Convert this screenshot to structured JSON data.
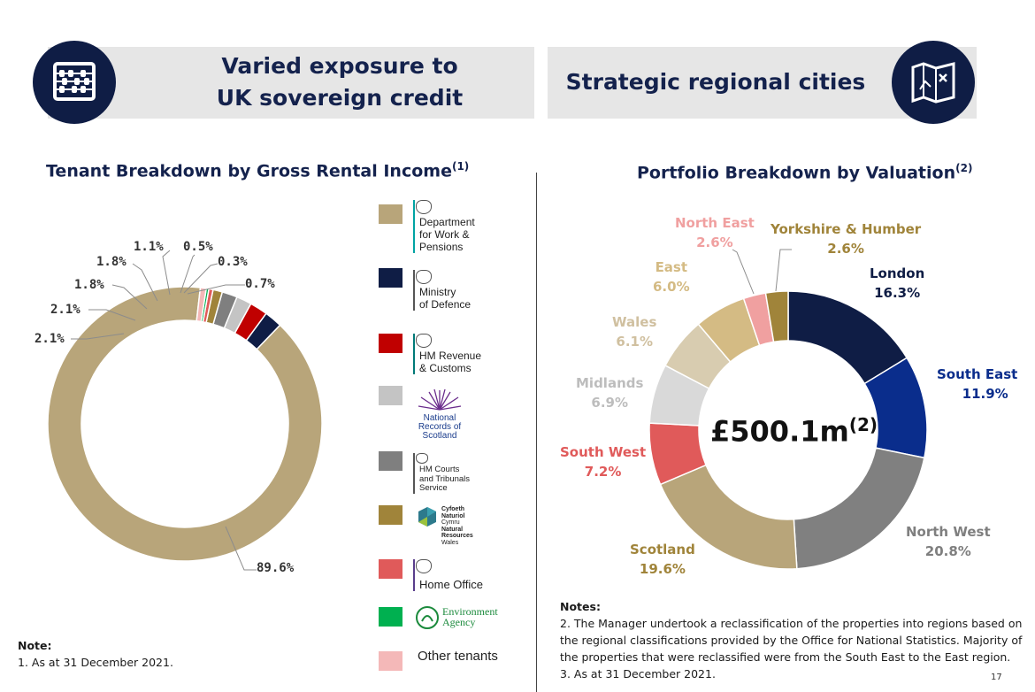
{
  "banners": {
    "left_title_line1": "Varied exposure to",
    "left_title_line2": "UK sovereign credit",
    "right_title": "Strategic regional cities",
    "left_icon": "abacus-icon",
    "right_icon": "map-icon"
  },
  "left_section": {
    "title": "Tenant Breakdown by Gross Rental Income",
    "title_note": "(1)"
  },
  "right_section": {
    "title": "Portfolio Breakdown by Valuation",
    "title_note": "(2)",
    "center_value": "£500.1m",
    "center_note": "(2)"
  },
  "chart_data": [
    {
      "type": "pie",
      "subtype": "donut",
      "title": "Tenant Breakdown by Gross Rental Income(1)",
      "slices": [
        {
          "label": "Department for Work & Pensions",
          "value": 89.6,
          "display": "89.6%",
          "color": "#b8a57a"
        },
        {
          "label": "Ministry of Defence",
          "value": 2.1,
          "display": "2.1%",
          "color": "#0f1d45"
        },
        {
          "label": "HM Revenue & Customs",
          "value": 2.1,
          "display": "2.1%",
          "color": "#c00000"
        },
        {
          "label": "National Records of Scotland",
          "value": 1.8,
          "display": "1.8%",
          "color": "#c4c4c4"
        },
        {
          "label": "HM Courts and Tribunals Service",
          "value": 1.8,
          "display": "1.8%",
          "color": "#7f7f7f"
        },
        {
          "label": "Cyfoeth Naturiol Cymru Natural Resources Wales",
          "value": 1.1,
          "display": "1.1%",
          "color": "#a0843a"
        },
        {
          "label": "Home Office",
          "value": 0.5,
          "display": "0.5%",
          "color": "#e05a5a"
        },
        {
          "label": "Environment Agency",
          "value": 0.3,
          "display": "0.3%",
          "color": "#00b050"
        },
        {
          "label": "Other tenants",
          "value": 0.7,
          "display": "0.7%",
          "color": "#f4b8b8"
        }
      ]
    },
    {
      "type": "pie",
      "subtype": "donut",
      "title": "Portfolio Breakdown by Valuation(2)",
      "slices": [
        {
          "label": "London",
          "value": 16.3,
          "display": "16.3%",
          "color": "#0f1d45"
        },
        {
          "label": "South East",
          "value": 11.9,
          "display": "11.9%",
          "color": "#0a2d8c"
        },
        {
          "label": "North West",
          "value": 20.8,
          "display": "20.8%",
          "color": "#808080"
        },
        {
          "label": "Scotland",
          "value": 19.6,
          "display": "19.6%",
          "color": "#b8a57a"
        },
        {
          "label": "South West",
          "value": 7.2,
          "display": "7.2%",
          "color": "#e05a5a"
        },
        {
          "label": "Midlands",
          "value": 6.9,
          "display": "6.9%",
          "color": "#d9d9d9"
        },
        {
          "label": "Wales",
          "value": 6.1,
          "display": "6.1%",
          "color": "#d8ccb0"
        },
        {
          "label": "East",
          "value": 6.0,
          "display": "6.0%",
          "color": "#d4bb84"
        },
        {
          "label": "North East",
          "value": 2.6,
          "display": "2.6%",
          "color": "#f0a0a0"
        },
        {
          "label": "Yorkshire & Humber",
          "value": 2.6,
          "display": "2.6%",
          "color": "#a0843a"
        }
      ]
    }
  ],
  "legend": {
    "dwp": [
      "Department",
      "for Work &",
      "Pensions"
    ],
    "mod": [
      "Ministry",
      "of Defence"
    ],
    "hmrc": [
      "HM Revenue",
      "& Customs"
    ],
    "nrs": [
      "National",
      "Records of",
      "Scotland"
    ],
    "hmcts": [
      "HM Courts",
      "and Tribunals",
      "Service"
    ],
    "nrw": [
      "Cyfoeth",
      "Naturiol",
      "Cymru",
      "Natural",
      "Resources",
      "Wales"
    ],
    "home_office": "Home Office",
    "ea": [
      "Environment",
      "Agency"
    ],
    "other": "Other tenants"
  },
  "notes": {
    "left_heading": "Note:",
    "left_line1": "1. As at 31 December 2021.",
    "right_heading": "Notes:",
    "right_line1": "2. The Manager undertook a reclassification of the properties into regions based on the regional classifications provided by the Office for National Statistics. Majority of the properties that were reclassified were from the South East to the East region.",
    "right_line2": "3. As at 31 December 2021."
  },
  "page_number": "17"
}
